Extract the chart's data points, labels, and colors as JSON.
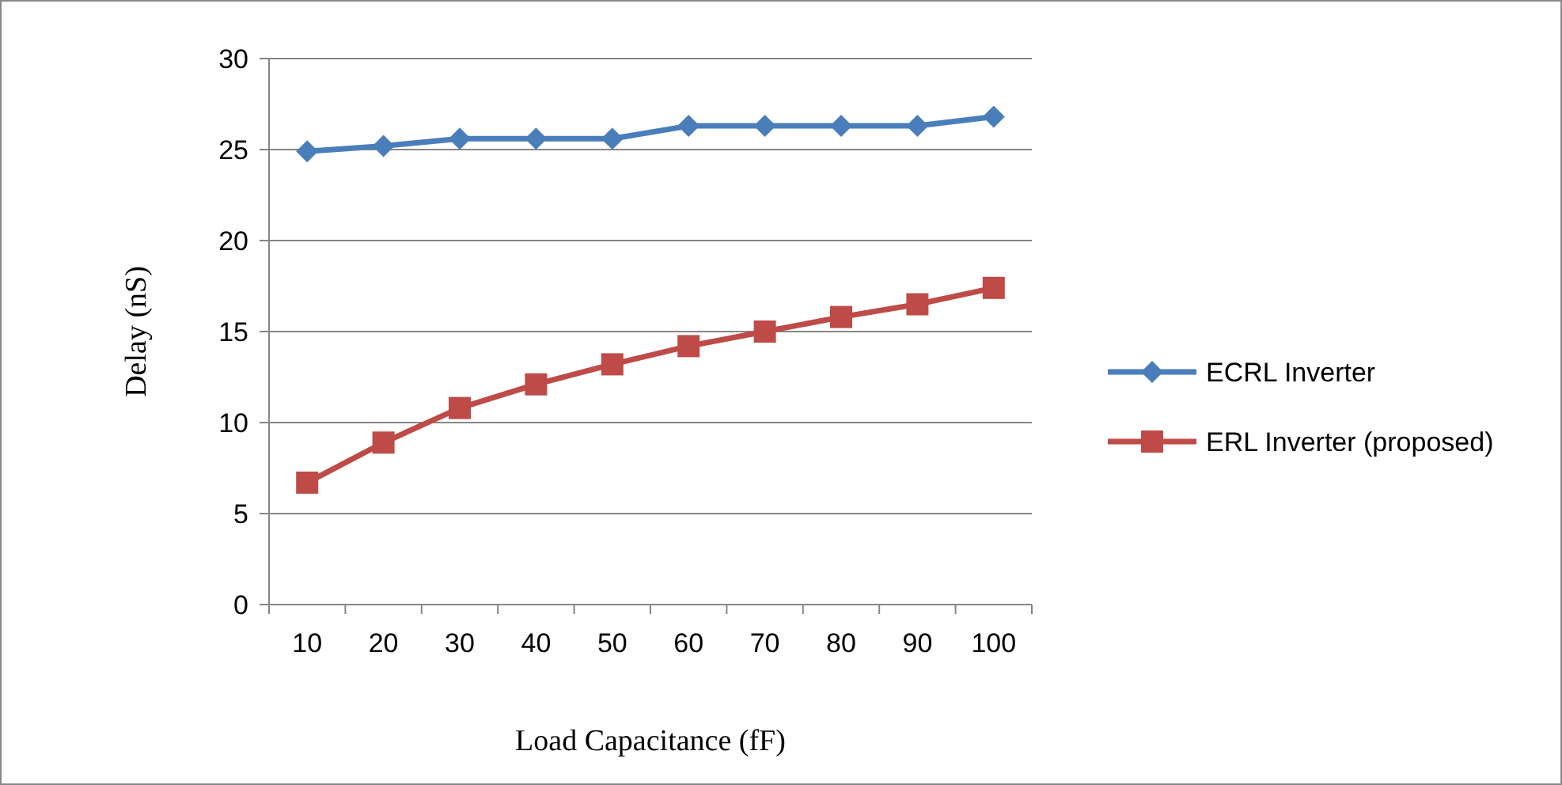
{
  "chart_data": {
    "type": "line",
    "xlabel": "Load Capacitance (fF)",
    "ylabel": "Delay (nS)",
    "categories": [
      "10",
      "20",
      "30",
      "40",
      "50",
      "60",
      "70",
      "80",
      "90",
      "100"
    ],
    "series": [
      {
        "name": "ECRL Inverter",
        "color": "#4a7ebb",
        "marker": "diamond",
        "values": [
          24.9,
          25.2,
          25.6,
          25.6,
          25.6,
          26.3,
          26.3,
          26.3,
          26.3,
          26.8
        ]
      },
      {
        "name": "ERL Inverter (proposed)",
        "color": "#be4b48",
        "marker": "square",
        "values": [
          6.7,
          8.9,
          10.8,
          12.1,
          13.2,
          14.2,
          15.0,
          15.8,
          16.5,
          17.4
        ]
      }
    ],
    "ylim": [
      0,
      30
    ],
    "yticks": [
      0,
      5,
      10,
      15,
      20,
      25,
      30
    ],
    "grid": "y",
    "legend": "right"
  }
}
